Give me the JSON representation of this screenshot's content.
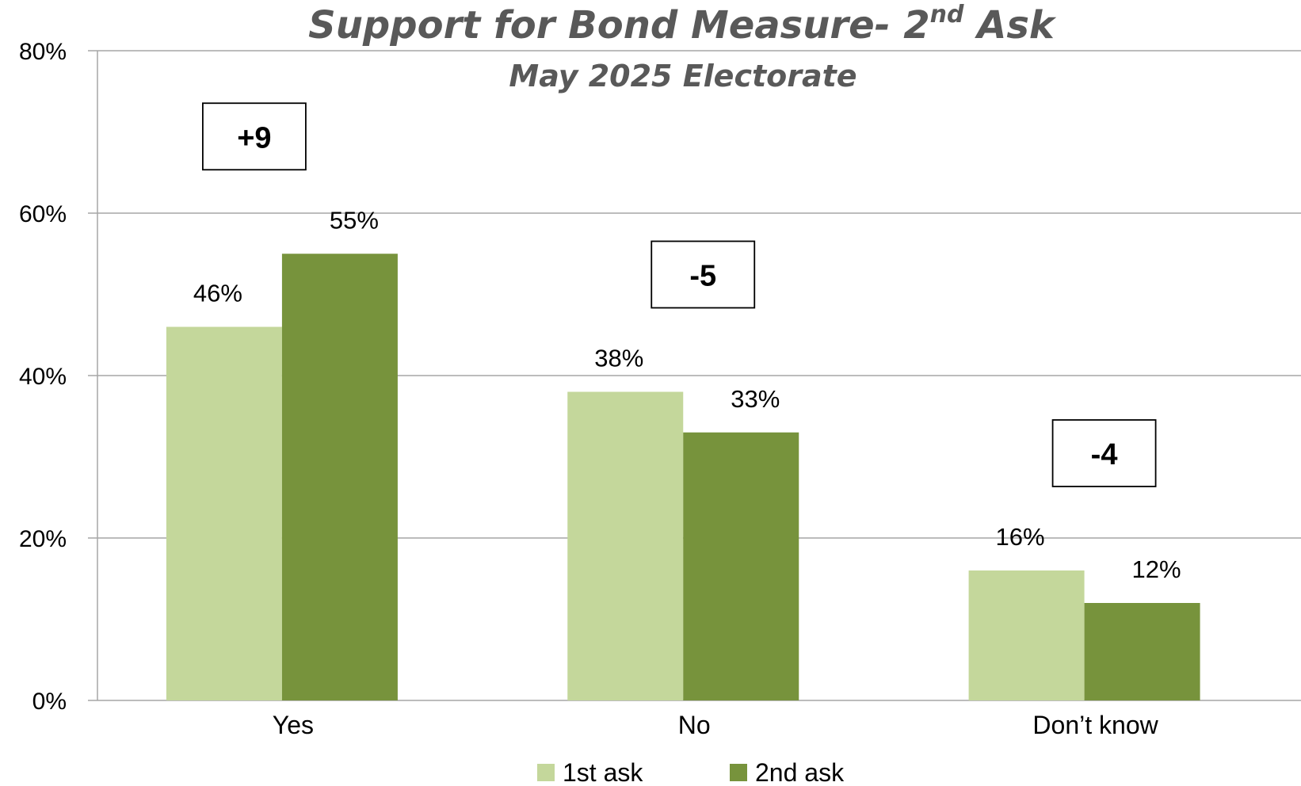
{
  "chart_data": {
    "type": "bar",
    "title_main": "Support for Bond Measure- 2",
    "title_sup": "nd",
    "title_end": " Ask",
    "subtitle": "May 2025 Electorate",
    "categories": [
      "Yes",
      "No",
      "Don’t know"
    ],
    "series": [
      {
        "name": "1st ask",
        "values": [
          46,
          38,
          16
        ],
        "labels": [
          "46%",
          "38%",
          "16%"
        ],
        "color": "#c4d79b"
      },
      {
        "name": "2nd ask",
        "values": [
          55,
          33,
          12
        ],
        "labels": [
          "55%",
          "33%",
          "12%"
        ],
        "color": "#77933c"
      }
    ],
    "differences": [
      "+9",
      "-5",
      "-4"
    ],
    "ylim": [
      0,
      80
    ],
    "yticks": [
      0,
      20,
      40,
      60,
      80
    ],
    "ytick_labels": [
      "0%",
      "20%",
      "40%",
      "60%",
      "80%"
    ],
    "grid": true,
    "legend": "bottom-center",
    "xlabel": "",
    "ylabel": ""
  }
}
